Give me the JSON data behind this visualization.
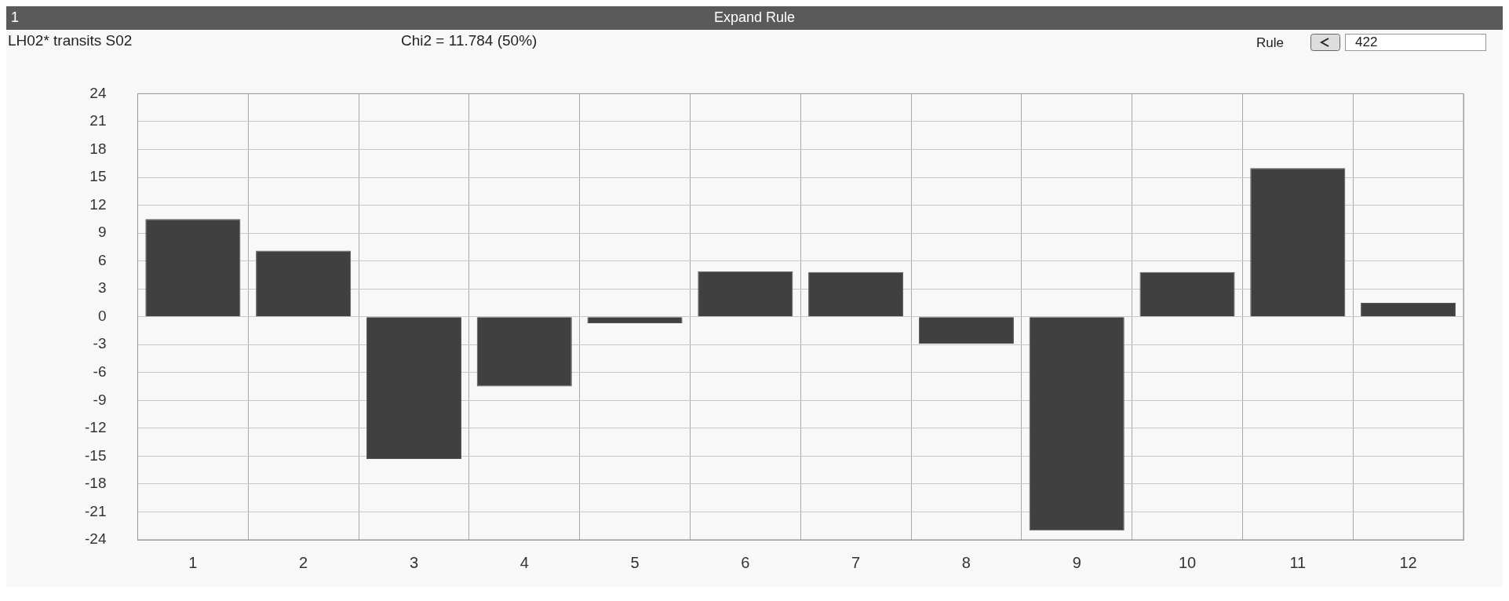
{
  "chart_data": {
    "type": "bar",
    "title": "LH02* transits S02",
    "subtitle": "Chi2 = 11.784 (50%)",
    "annotations": [
      "1",
      "Expand Rule",
      "Rule",
      "422"
    ],
    "categories": [
      "1",
      "2",
      "3",
      "4",
      "5",
      "6",
      "7",
      "8",
      "9",
      "10",
      "11",
      "12"
    ],
    "values": [
      10.5,
      7.1,
      -15.3,
      -7.5,
      -0.7,
      4.9,
      4.8,
      -2.9,
      -23,
      4.8,
      16,
      1.5
    ],
    "color": "#404040",
    "ylim": [
      -24,
      24
    ],
    "yticks": [
      -24,
      -21,
      -18,
      -15,
      -12,
      -9,
      -6,
      -3,
      0,
      3,
      6,
      9,
      12,
      15,
      18,
      21,
      24
    ],
    "grid": true,
    "legend": false
  }
}
